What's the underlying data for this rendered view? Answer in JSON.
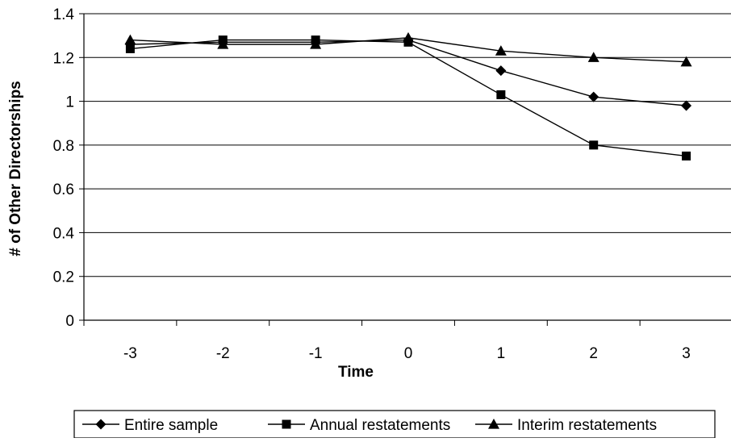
{
  "chart_data": {
    "type": "line",
    "title": "",
    "xlabel": "Time",
    "ylabel": "# of Other Directorships",
    "x": [
      "-3",
      "-2",
      "-1",
      "0",
      "1",
      "2",
      "3"
    ],
    "ylim": [
      0,
      1.4
    ],
    "yticks": [
      "0",
      "0.2",
      "0.4",
      "0.6",
      "0.8",
      "1",
      "1.2",
      "1.4"
    ],
    "grid": "horizontal",
    "legend_position": "bottom",
    "series": [
      {
        "name": "Entire sample",
        "marker": "diamond",
        "values": [
          1.26,
          1.27,
          1.27,
          1.28,
          1.14,
          1.02,
          0.98
        ]
      },
      {
        "name": "Annual restatements",
        "marker": "square",
        "values": [
          1.24,
          1.28,
          1.28,
          1.27,
          1.03,
          0.8,
          0.75
        ]
      },
      {
        "name": "Interim restatements",
        "marker": "triangle",
        "values": [
          1.28,
          1.26,
          1.26,
          1.29,
          1.23,
          1.2,
          1.18
        ]
      }
    ]
  }
}
